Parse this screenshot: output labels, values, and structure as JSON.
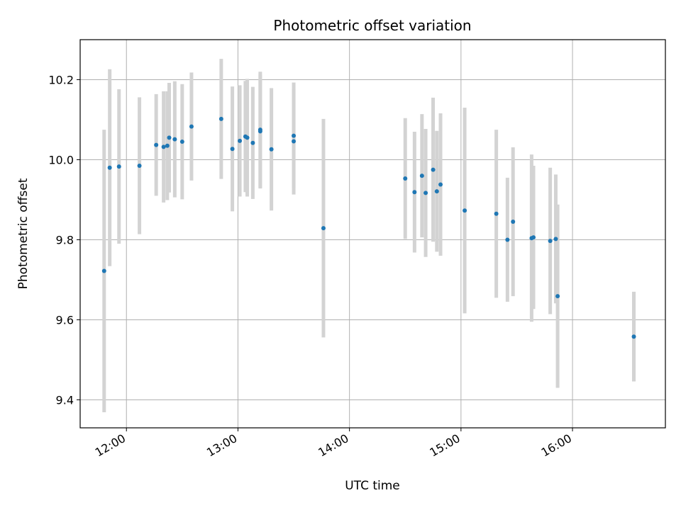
{
  "chart_data": {
    "type": "scatter",
    "title": "Photometric offset variation",
    "xlabel": "UTC time",
    "ylabel": "Photometric offset",
    "xlim_hours": [
      11.585,
      16.833
    ],
    "ylim": [
      9.33,
      10.3
    ],
    "grid": true,
    "x_ticks": [
      {
        "hour": 12,
        "label": "12:00"
      },
      {
        "hour": 13,
        "label": "13:00"
      },
      {
        "hour": 14,
        "label": "14:00"
      },
      {
        "hour": 15,
        "label": "15:00"
      },
      {
        "hour": 16,
        "label": "16:00"
      }
    ],
    "y_ticks": [
      {
        "value": 9.4,
        "label": "9.4"
      },
      {
        "value": 9.6,
        "label": "9.6"
      },
      {
        "value": 9.8,
        "label": "9.8"
      },
      {
        "value": 10.0,
        "label": "10.0"
      },
      {
        "value": 10.2,
        "label": "10.2"
      }
    ],
    "colors": {
      "point": "#1f77b4",
      "errorbar": "#d3d3d3",
      "grid": "#b0b0b0"
    },
    "series": [
      {
        "x": [
          "11:48",
          "11:51",
          "11:56",
          "12:07",
          "12:16",
          "12:20",
          "12:22",
          "12:23",
          "12:26",
          "12:30",
          "12:35",
          "12:51",
          "12:57",
          "13:01",
          "13:04",
          "13:05",
          "13:08",
          "13:12",
          "13:12",
          "13:18",
          "13:30",
          "13:30",
          "13:46",
          "14:30",
          "14:35",
          "14:39",
          "14:41",
          "14:45",
          "14:47",
          "14:49",
          "15:02",
          "15:19",
          "15:25",
          "15:28",
          "15:38",
          "15:39",
          "15:48",
          "15:51",
          "15:52",
          "16:33"
        ],
        "y": [
          9.722,
          9.98,
          9.983,
          9.985,
          10.037,
          10.032,
          10.035,
          10.055,
          10.051,
          10.045,
          10.083,
          10.102,
          10.027,
          10.047,
          10.058,
          10.055,
          10.042,
          10.075,
          10.071,
          10.026,
          10.06,
          10.046,
          9.829,
          9.953,
          9.919,
          9.96,
          9.917,
          9.975,
          9.921,
          9.938,
          9.873,
          9.865,
          9.8,
          9.845,
          9.804,
          9.806,
          9.797,
          9.802,
          9.659,
          9.558
        ],
        "yerr": [
          0.353,
          0.246,
          0.193,
          0.171,
          0.127,
          0.139,
          0.136,
          0.137,
          0.145,
          0.144,
          0.135,
          0.15,
          0.156,
          0.139,
          0.139,
          0.147,
          0.14,
          0.145,
          0.143,
          0.153,
          0.133,
          0.133,
          0.273,
          0.151,
          0.151,
          0.154,
          0.16,
          0.18,
          0.151,
          0.178,
          0.257,
          0.21,
          0.155,
          0.186,
          0.209,
          0.179,
          0.183,
          0.161,
          0.229,
          0.112
        ]
      }
    ]
  }
}
